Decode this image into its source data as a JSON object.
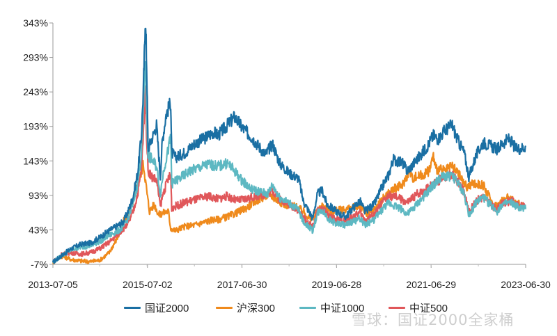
{
  "chart_data": {
    "type": "line",
    "title": "",
    "xlabel": "",
    "ylabel": "",
    "x_ticks": [
      "2013-07-05",
      "2015-07-02",
      "2017-06-30",
      "2019-06-28",
      "2021-06-29",
      "2023-06-30"
    ],
    "y_ticks": [
      "-7%",
      "43%",
      "93%",
      "143%",
      "193%",
      "243%",
      "293%",
      "343%"
    ],
    "ylim": [
      -7,
      343
    ],
    "xlim": [
      2013.51,
      2023.5
    ],
    "grid": false,
    "legend_position": "bottom",
    "series": [
      {
        "name": "国证2000",
        "color": "#1a6fa3",
        "points": [
          [
            2013.51,
            -4
          ],
          [
            2013.7,
            6
          ],
          [
            2013.9,
            16
          ],
          [
            2014.1,
            22
          ],
          [
            2014.3,
            24
          ],
          [
            2014.5,
            32
          ],
          [
            2014.7,
            42
          ],
          [
            2014.9,
            50
          ],
          [
            2015.0,
            55
          ],
          [
            2015.1,
            70
          ],
          [
            2015.2,
            90
          ],
          [
            2015.3,
            125
          ],
          [
            2015.38,
            180
          ],
          [
            2015.42,
            245
          ],
          [
            2015.44,
            290
          ],
          [
            2015.46,
            345
          ],
          [
            2015.48,
            315
          ],
          [
            2015.5,
            250
          ],
          [
            2015.52,
            160
          ],
          [
            2015.6,
            175
          ],
          [
            2015.7,
            195
          ],
          [
            2015.78,
            120
          ],
          [
            2015.82,
            170
          ],
          [
            2015.9,
            210
          ],
          [
            2016.0,
            228
          ],
          [
            2016.02,
            155
          ],
          [
            2016.1,
            148
          ],
          [
            2016.3,
            155
          ],
          [
            2016.5,
            168
          ],
          [
            2016.7,
            175
          ],
          [
            2016.9,
            185
          ],
          [
            2017.0,
            180
          ],
          [
            2017.2,
            195
          ],
          [
            2017.35,
            207
          ],
          [
            2017.5,
            192
          ],
          [
            2017.7,
            178
          ],
          [
            2017.85,
            165
          ],
          [
            2018.0,
            152
          ],
          [
            2018.15,
            168
          ],
          [
            2018.3,
            140
          ],
          [
            2018.5,
            125
          ],
          [
            2018.7,
            118
          ],
          [
            2018.8,
            85
          ],
          [
            2019.0,
            60
          ],
          [
            2019.1,
            95
          ],
          [
            2019.2,
            100
          ],
          [
            2019.3,
            80
          ],
          [
            2019.5,
            70
          ],
          [
            2019.6,
            65
          ],
          [
            2019.7,
            62
          ],
          [
            2019.85,
            75
          ],
          [
            2020.0,
            85
          ],
          [
            2020.1,
            70
          ],
          [
            2020.3,
            80
          ],
          [
            2020.5,
            110
          ],
          [
            2020.6,
            122
          ],
          [
            2020.7,
            145
          ],
          [
            2020.9,
            140
          ],
          [
            2021.0,
            128
          ],
          [
            2021.2,
            145
          ],
          [
            2021.4,
            162
          ],
          [
            2021.55,
            180
          ],
          [
            2021.65,
            175
          ],
          [
            2021.8,
            188
          ],
          [
            2021.95,
            195
          ],
          [
            2022.05,
            175
          ],
          [
            2022.2,
            155
          ],
          [
            2022.3,
            120
          ],
          [
            2022.45,
            150
          ],
          [
            2022.6,
            170
          ],
          [
            2022.75,
            165
          ],
          [
            2022.9,
            160
          ],
          [
            2023.0,
            168
          ],
          [
            2023.15,
            175
          ],
          [
            2023.3,
            160
          ],
          [
            2023.45,
            162
          ],
          [
            2023.5,
            165
          ]
        ]
      },
      {
        "name": "沪深300",
        "color": "#ef8a1c",
        "points": [
          [
            2013.51,
            -4
          ],
          [
            2013.7,
            5
          ],
          [
            2013.9,
            0
          ],
          [
            2014.1,
            -2
          ],
          [
            2014.3,
            -3
          ],
          [
            2014.5,
            -1
          ],
          [
            2014.7,
            10
          ],
          [
            2014.9,
            35
          ],
          [
            2015.0,
            55
          ],
          [
            2015.1,
            65
          ],
          [
            2015.2,
            85
          ],
          [
            2015.3,
            110
          ],
          [
            2015.38,
            125
          ],
          [
            2015.42,
            140
          ],
          [
            2015.46,
            118
          ],
          [
            2015.5,
            95
          ],
          [
            2015.55,
            70
          ],
          [
            2015.65,
            80
          ],
          [
            2015.75,
            65
          ],
          [
            2015.85,
            68
          ],
          [
            2015.95,
            70
          ],
          [
            2016.0,
            45
          ],
          [
            2016.1,
            42
          ],
          [
            2016.3,
            48
          ],
          [
            2016.5,
            50
          ],
          [
            2016.7,
            54
          ],
          [
            2016.9,
            58
          ],
          [
            2017.0,
            58
          ],
          [
            2017.2,
            62
          ],
          [
            2017.4,
            68
          ],
          [
            2017.6,
            75
          ],
          [
            2017.8,
            85
          ],
          [
            2018.0,
            92
          ],
          [
            2018.1,
            95
          ],
          [
            2018.2,
            88
          ],
          [
            2018.4,
            80
          ],
          [
            2018.6,
            78
          ],
          [
            2018.8,
            70
          ],
          [
            2018.95,
            58
          ],
          [
            2019.0,
            60
          ],
          [
            2019.2,
            78
          ],
          [
            2019.4,
            70
          ],
          [
            2019.6,
            72
          ],
          [
            2019.8,
            74
          ],
          [
            2020.0,
            78
          ],
          [
            2020.15,
            65
          ],
          [
            2020.3,
            72
          ],
          [
            2020.5,
            90
          ],
          [
            2020.7,
            102
          ],
          [
            2020.9,
            108
          ],
          [
            2021.05,
            130
          ],
          [
            2021.1,
            118
          ],
          [
            2021.3,
            122
          ],
          [
            2021.45,
            128
          ],
          [
            2021.55,
            150
          ],
          [
            2021.6,
            132
          ],
          [
            2021.8,
            128
          ],
          [
            2021.95,
            135
          ],
          [
            2022.1,
            122
          ],
          [
            2022.25,
            105
          ],
          [
            2022.4,
            110
          ],
          [
            2022.6,
            108
          ],
          [
            2022.8,
            82
          ],
          [
            2022.9,
            78
          ],
          [
            2023.0,
            86
          ],
          [
            2023.15,
            90
          ],
          [
            2023.3,
            82
          ],
          [
            2023.45,
            78
          ],
          [
            2023.5,
            76
          ]
        ]
      },
      {
        "name": "中证1000",
        "color": "#5db8c2",
        "points": [
          [
            2013.51,
            -4
          ],
          [
            2013.7,
            6
          ],
          [
            2013.9,
            14
          ],
          [
            2014.1,
            18
          ],
          [
            2014.3,
            20
          ],
          [
            2014.5,
            26
          ],
          [
            2014.7,
            35
          ],
          [
            2014.9,
            42
          ],
          [
            2015.0,
            48
          ],
          [
            2015.1,
            60
          ],
          [
            2015.2,
            80
          ],
          [
            2015.3,
            110
          ],
          [
            2015.38,
            155
          ],
          [
            2015.42,
            210
          ],
          [
            2015.44,
            260
          ],
          [
            2015.46,
            290
          ],
          [
            2015.48,
            240
          ],
          [
            2015.52,
            150
          ],
          [
            2015.6,
            145
          ],
          [
            2015.7,
            135
          ],
          [
            2015.78,
            95
          ],
          [
            2015.85,
            130
          ],
          [
            2015.95,
            160
          ],
          [
            2016.0,
            178
          ],
          [
            2016.02,
            110
          ],
          [
            2016.2,
            118
          ],
          [
            2016.4,
            128
          ],
          [
            2016.6,
            133
          ],
          [
            2016.8,
            138
          ],
          [
            2017.0,
            135
          ],
          [
            2017.2,
            140
          ],
          [
            2017.35,
            128
          ],
          [
            2017.5,
            115
          ],
          [
            2017.7,
            102
          ],
          [
            2017.9,
            98
          ],
          [
            2018.05,
            95
          ],
          [
            2018.15,
            108
          ],
          [
            2018.3,
            90
          ],
          [
            2018.5,
            82
          ],
          [
            2018.7,
            72
          ],
          [
            2018.8,
            55
          ],
          [
            2019.0,
            42
          ],
          [
            2019.1,
            68
          ],
          [
            2019.2,
            72
          ],
          [
            2019.35,
            58
          ],
          [
            2019.5,
            52
          ],
          [
            2019.7,
            50
          ],
          [
            2019.85,
            55
          ],
          [
            2020.0,
            60
          ],
          [
            2020.1,
            50
          ],
          [
            2020.3,
            58
          ],
          [
            2020.5,
            75
          ],
          [
            2020.6,
            82
          ],
          [
            2020.75,
            78
          ],
          [
            2020.9,
            72
          ],
          [
            2021.0,
            65
          ],
          [
            2021.2,
            80
          ],
          [
            2021.4,
            95
          ],
          [
            2021.55,
            108
          ],
          [
            2021.7,
            118
          ],
          [
            2021.85,
            122
          ],
          [
            2022.0,
            118
          ],
          [
            2022.2,
            95
          ],
          [
            2022.3,
            65
          ],
          [
            2022.45,
            82
          ],
          [
            2022.6,
            90
          ],
          [
            2022.75,
            80
          ],
          [
            2022.9,
            70
          ],
          [
            2023.0,
            80
          ],
          [
            2023.2,
            82
          ],
          [
            2023.35,
            75
          ],
          [
            2023.5,
            73
          ]
        ]
      },
      {
        "name": "中证500",
        "color": "#e0575a",
        "points": [
          [
            2013.51,
            -4
          ],
          [
            2013.7,
            8
          ],
          [
            2013.9,
            10
          ],
          [
            2014.1,
            8
          ],
          [
            2014.3,
            10
          ],
          [
            2014.5,
            16
          ],
          [
            2014.7,
            25
          ],
          [
            2014.9,
            38
          ],
          [
            2015.0,
            45
          ],
          [
            2015.1,
            52
          ],
          [
            2015.2,
            68
          ],
          [
            2015.3,
            95
          ],
          [
            2015.38,
            130
          ],
          [
            2015.42,
            180
          ],
          [
            2015.46,
            245
          ],
          [
            2015.48,
            200
          ],
          [
            2015.52,
            130
          ],
          [
            2015.6,
            120
          ],
          [
            2015.7,
            115
          ],
          [
            2015.78,
            78
          ],
          [
            2015.85,
            98
          ],
          [
            2015.95,
            118
          ],
          [
            2016.0,
            122
          ],
          [
            2016.02,
            75
          ],
          [
            2016.2,
            80
          ],
          [
            2016.4,
            85
          ],
          [
            2016.6,
            88
          ],
          [
            2016.8,
            92
          ],
          [
            2017.0,
            88
          ],
          [
            2017.2,
            92
          ],
          [
            2017.4,
            85
          ],
          [
            2017.6,
            88
          ],
          [
            2017.8,
            92
          ],
          [
            2018.0,
            95
          ],
          [
            2018.15,
            100
          ],
          [
            2018.3,
            88
          ],
          [
            2018.5,
            80
          ],
          [
            2018.7,
            72
          ],
          [
            2018.8,
            60
          ],
          [
            2019.0,
            48
          ],
          [
            2019.1,
            70
          ],
          [
            2019.2,
            75
          ],
          [
            2019.35,
            62
          ],
          [
            2019.5,
            58
          ],
          [
            2019.7,
            56
          ],
          [
            2019.85,
            62
          ],
          [
            2020.0,
            68
          ],
          [
            2020.1,
            58
          ],
          [
            2020.3,
            65
          ],
          [
            2020.5,
            85
          ],
          [
            2020.6,
            92
          ],
          [
            2020.8,
            90
          ],
          [
            2021.0,
            82
          ],
          [
            2021.2,
            95
          ],
          [
            2021.4,
            102
          ],
          [
            2021.6,
            112
          ],
          [
            2021.8,
            120
          ],
          [
            2021.95,
            122
          ],
          [
            2022.1,
            110
          ],
          [
            2022.25,
            90
          ],
          [
            2022.3,
            68
          ],
          [
            2022.45,
            85
          ],
          [
            2022.6,
            90
          ],
          [
            2022.8,
            78
          ],
          [
            2022.9,
            72
          ],
          [
            2023.0,
            82
          ],
          [
            2023.2,
            85
          ],
          [
            2023.35,
            78
          ],
          [
            2023.5,
            78
          ]
        ]
      }
    ]
  },
  "watermark_text": "雪球：国证2000全家桶"
}
